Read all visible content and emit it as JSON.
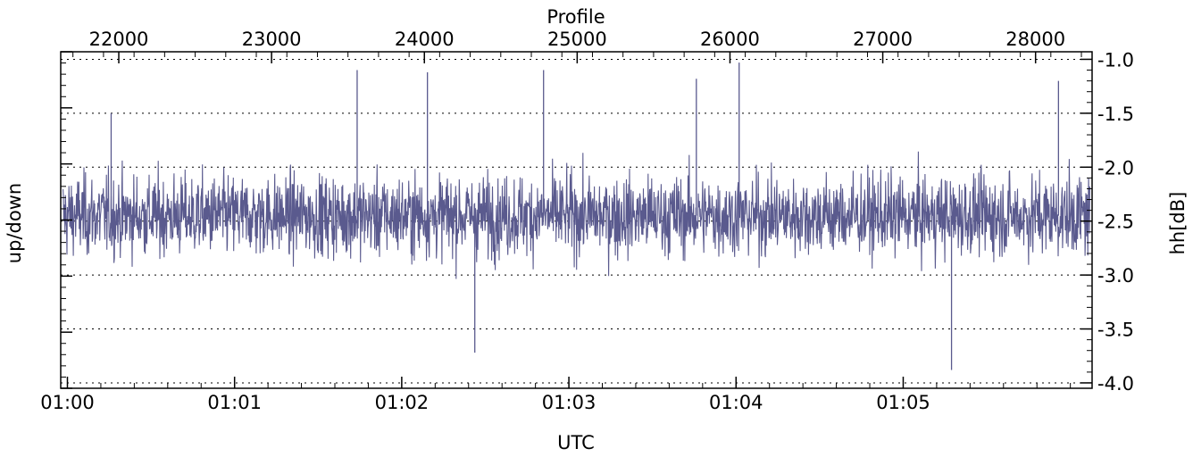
{
  "chart_data": {
    "type": "line",
    "title": "",
    "xlabel_bottom": "UTC",
    "xlabel_top": "Profile",
    "ylabel_left": "up/down",
    "ylabel_right": "hh[dB]",
    "x_bottom_ticks": [
      "01:00",
      "01:01",
      "01:02",
      "01:03",
      "01:04",
      "01:05"
    ],
    "x_bottom_tick_minutes": [
      0,
      1,
      2,
      3,
      4,
      5
    ],
    "x_bottom_range_minutes": [
      -0.04,
      6.13
    ],
    "x_top_ticks": [
      "22000",
      "23000",
      "24000",
      "25000",
      "26000",
      "27000",
      "28000"
    ],
    "x_top_tick_values": [
      22000,
      23000,
      24000,
      25000,
      26000,
      27000,
      28000
    ],
    "x_top_range": [
      21620,
      28370
    ],
    "y_right_ticks": [
      "-1.0",
      "-1.5",
      "-2.0",
      "-2.5",
      "-3.0",
      "-3.5",
      "-4.0"
    ],
    "y_right_tick_values": [
      -1.0,
      -1.5,
      -2.0,
      -2.5,
      -3.0,
      -3.5,
      -4.0
    ],
    "y_range": [
      -4.05,
      -0.93
    ],
    "grid": "horizontal dotted",
    "series": [
      {
        "color": "#5a5a8e",
        "mean": -2.45,
        "envelope_upper": -1.6,
        "envelope_lower": -3.3,
        "max": -1.03,
        "min": -3.88,
        "peaks": [
          {
            "profile": 21950,
            "value": -1.5
          },
          {
            "profile": 23560,
            "value": -1.1
          },
          {
            "profile": 24020,
            "value": -1.12
          },
          {
            "profile": 24330,
            "value": -3.72
          },
          {
            "profile": 24780,
            "value": -1.1
          },
          {
            "profile": 25780,
            "value": -1.18
          },
          {
            "profile": 26060,
            "value": -1.03
          },
          {
            "profile": 27450,
            "value": -3.88
          },
          {
            "profile": 28150,
            "value": -1.2
          }
        ]
      }
    ]
  }
}
